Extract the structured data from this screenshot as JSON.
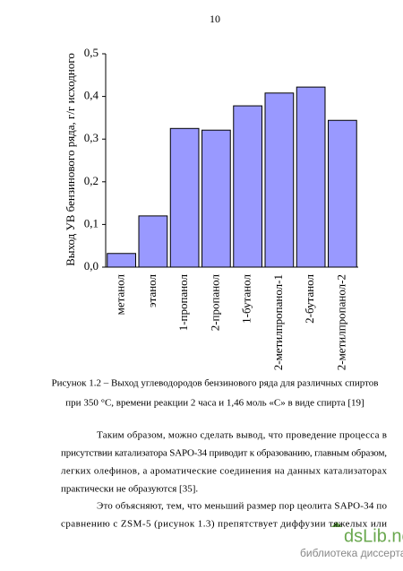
{
  "page_number": "10",
  "chart_data": {
    "type": "bar",
    "y_label": "Выход УВ бензинового ряда, г/г исходного",
    "categories": [
      "метанол",
      "этанол",
      "1-пропанол",
      "2-пропанол",
      "1-бутанол",
      "2-метилпропанол-1",
      "2-бутанол",
      "2-метилпропанол-2"
    ],
    "values": [
      0.032,
      0.12,
      0.325,
      0.321,
      0.378,
      0.408,
      0.422,
      0.344
    ],
    "color": "#9999ff",
    "ylim": [
      0,
      0.5
    ],
    "yticks": [
      {
        "value": 0,
        "label": "0,0"
      },
      {
        "value": 0.1,
        "label": "0,1"
      },
      {
        "value": 0.2,
        "label": "0,2"
      },
      {
        "value": 0.3,
        "label": "0,3"
      },
      {
        "value": 0.4,
        "label": "0,4"
      },
      {
        "value": 0.5,
        "label": "0,5"
      }
    ],
    "grid": false
  },
  "caption": [
    "Рисунок 1.2 – Выход углеводородов бензинового ряда для различных спиртов",
    "при 350 °С, времени реакции 2 часа и 1,46 моль «С» в виде спирта [19]"
  ],
  "paragraphs": [
    [
      "Таким образом, можно сделать вывод, что проведение процесса в",
      "присутствии катализатора SAPO-34 приводит к образованию, главным образом,",
      "легких олефинов, а ароматические соединения на данных катализаторах",
      "практически не образуются [35]."
    ],
    [
      "Это объясняют, тем, что меньший размер пор цеолита SAPO-34 по",
      "сравнению с ZSM-5 (рисунок 1.3) препятствует диффузии тяжелых или"
    ]
  ],
  "watermark": {
    "brand": "dsLib.net",
    "tagline": "библиотека диссертаций"
  }
}
